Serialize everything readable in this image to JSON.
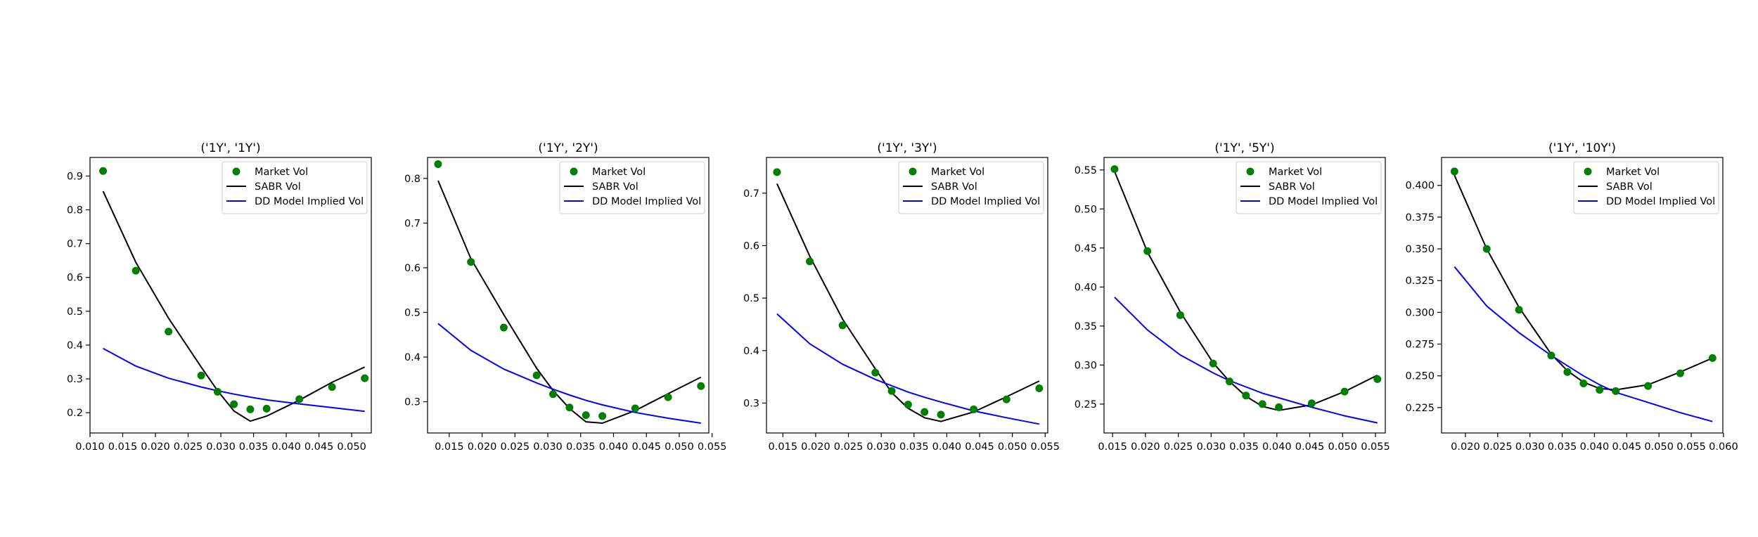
{
  "chart_data": [
    {
      "type": "line",
      "title": "('1Y', '1Y')",
      "xlim": [
        0.01,
        0.053
      ],
      "ylim": [
        0.14,
        0.955
      ],
      "xticks": [
        0.01,
        0.015,
        0.02,
        0.025,
        0.03,
        0.035,
        0.04,
        0.045,
        0.05
      ],
      "xtick_labels": [
        "0.010",
        "0.015",
        "0.020",
        "0.025",
        "0.030",
        "0.035",
        "0.040",
        "0.045",
        "0.050"
      ],
      "yticks": [
        0.2,
        0.3,
        0.4,
        0.5,
        0.6,
        0.7,
        0.8,
        0.9
      ],
      "ytick_labels": [
        "0.2",
        "0.3",
        "0.4",
        "0.5",
        "0.6",
        "0.7",
        "0.8",
        "0.9"
      ],
      "legend_position": "top-right",
      "series": [
        {
          "name": "Market Vol",
          "kind": "scatter",
          "color": "#008000",
          "x": [
            0.012,
            0.017,
            0.022,
            0.027,
            0.0295,
            0.032,
            0.0345,
            0.037,
            0.042,
            0.047,
            0.052
          ],
          "y": [
            0.915,
            0.62,
            0.44,
            0.31,
            0.262,
            0.225,
            0.21,
            0.212,
            0.24,
            0.276,
            0.302
          ]
        },
        {
          "name": "SABR Vol",
          "kind": "line",
          "color": "#000000",
          "x": [
            0.012,
            0.017,
            0.022,
            0.027,
            0.0295,
            0.032,
            0.0345,
            0.037,
            0.042,
            0.047,
            0.052
          ],
          "y": [
            0.855,
            0.645,
            0.48,
            0.335,
            0.265,
            0.205,
            0.175,
            0.19,
            0.237,
            0.29,
            0.335
          ]
        },
        {
          "name": "DD Model Implied Vol",
          "kind": "line",
          "color": "#0000ff",
          "x": [
            0.012,
            0.017,
            0.022,
            0.027,
            0.0295,
            0.032,
            0.0345,
            0.037,
            0.042,
            0.047,
            0.052
          ],
          "y": [
            0.39,
            0.338,
            0.302,
            0.276,
            0.265,
            0.255,
            0.246,
            0.238,
            0.226,
            0.215,
            0.204
          ]
        }
      ]
    },
    {
      "type": "line",
      "title": "('1Y', '2Y')",
      "xlim": [
        0.0117,
        0.0545
      ],
      "ylim": [
        0.23,
        0.847
      ],
      "xticks": [
        0.015,
        0.02,
        0.025,
        0.03,
        0.035,
        0.04,
        0.045,
        0.05,
        0.055
      ],
      "xtick_labels": [
        "0.015",
        "0.020",
        "0.025",
        "0.030",
        "0.035",
        "0.040",
        "0.045",
        "0.050",
        "0.055"
      ],
      "yticks": [
        0.3,
        0.4,
        0.5,
        0.6,
        0.7,
        0.8
      ],
      "ytick_labels": [
        "0.3",
        "0.4",
        "0.5",
        "0.6",
        "0.7",
        "0.8"
      ],
      "legend_position": "top-right",
      "series": [
        {
          "name": "Market Vol",
          "kind": "scatter",
          "color": "#008000",
          "x": [
            0.0133,
            0.0183,
            0.0233,
            0.0283,
            0.0308,
            0.0333,
            0.0358,
            0.0383,
            0.0433,
            0.0483,
            0.0533
          ],
          "y": [
            0.832,
            0.613,
            0.466,
            0.359,
            0.317,
            0.287,
            0.27,
            0.268,
            0.285,
            0.31,
            0.335
          ]
        },
        {
          "name": "SABR Vol",
          "kind": "line",
          "color": "#000000",
          "x": [
            0.0133,
            0.0183,
            0.0233,
            0.0283,
            0.0308,
            0.0333,
            0.0358,
            0.0383,
            0.0433,
            0.0483,
            0.0533
          ],
          "y": [
            0.795,
            0.62,
            0.495,
            0.375,
            0.325,
            0.285,
            0.255,
            0.252,
            0.28,
            0.318,
            0.355
          ]
        },
        {
          "name": "DD Model Implied Vol",
          "kind": "line",
          "color": "#0000ff",
          "x": [
            0.0133,
            0.0183,
            0.0233,
            0.0283,
            0.0308,
            0.0333,
            0.0358,
            0.0383,
            0.0433,
            0.0483,
            0.0533
          ],
          "y": [
            0.475,
            0.415,
            0.373,
            0.342,
            0.328,
            0.315,
            0.303,
            0.293,
            0.276,
            0.263,
            0.252
          ]
        }
      ]
    },
    {
      "type": "line",
      "title": "('1Y', '3Y')",
      "xlim": [
        0.0125,
        0.0554
      ],
      "ylim": [
        0.243,
        0.768
      ],
      "xticks": [
        0.015,
        0.02,
        0.025,
        0.03,
        0.035,
        0.04,
        0.045,
        0.05,
        0.055
      ],
      "xtick_labels": [
        "0.015",
        "0.020",
        "0.025",
        "0.030",
        "0.035",
        "0.040",
        "0.045",
        "0.050",
        "0.055"
      ],
      "yticks": [
        0.3,
        0.4,
        0.5,
        0.6,
        0.7
      ],
      "ytick_labels": [
        "0.3",
        "0.4",
        "0.5",
        "0.6",
        "0.7"
      ],
      "legend_position": "top-right",
      "series": [
        {
          "name": "Market Vol",
          "kind": "scatter",
          "color": "#008000",
          "x": [
            0.0141,
            0.0191,
            0.0241,
            0.0291,
            0.0316,
            0.0341,
            0.0366,
            0.0391,
            0.0441,
            0.0491,
            0.0541
          ],
          "y": [
            0.74,
            0.57,
            0.448,
            0.358,
            0.323,
            0.297,
            0.283,
            0.278,
            0.288,
            0.307,
            0.328
          ]
        },
        {
          "name": "SABR Vol",
          "kind": "line",
          "color": "#000000",
          "x": [
            0.0141,
            0.0191,
            0.0241,
            0.0291,
            0.0316,
            0.0341,
            0.0366,
            0.0391,
            0.0441,
            0.0491,
            0.0541
          ],
          "y": [
            0.718,
            0.58,
            0.46,
            0.365,
            0.32,
            0.29,
            0.272,
            0.265,
            0.283,
            0.312,
            0.342
          ]
        },
        {
          "name": "DD Model Implied Vol",
          "kind": "line",
          "color": "#0000ff",
          "x": [
            0.0141,
            0.0191,
            0.0241,
            0.0291,
            0.0316,
            0.0341,
            0.0366,
            0.0391,
            0.0441,
            0.0491,
            0.0541
          ],
          "y": [
            0.47,
            0.413,
            0.374,
            0.345,
            0.333,
            0.321,
            0.311,
            0.302,
            0.285,
            0.272,
            0.26
          ]
        }
      ]
    },
    {
      "type": "line",
      "title": "('1Y', '5Y')",
      "xlim": [
        0.0137,
        0.0565
      ],
      "ylim": [
        0.213,
        0.566
      ],
      "xticks": [
        0.015,
        0.02,
        0.025,
        0.03,
        0.035,
        0.04,
        0.045,
        0.05,
        0.055
      ],
      "xtick_labels": [
        "0.015",
        "0.020",
        "0.025",
        "0.030",
        "0.035",
        "0.040",
        "0.045",
        "0.050",
        "0.055"
      ],
      "yticks": [
        0.25,
        0.3,
        0.35,
        0.4,
        0.45,
        0.5,
        0.55
      ],
      "ytick_labels": [
        "0.25",
        "0.30",
        "0.35",
        "0.40",
        "0.45",
        "0.50",
        "0.55"
      ],
      "legend_position": "top-right",
      "series": [
        {
          "name": "Market Vol",
          "kind": "scatter",
          "color": "#008000",
          "x": [
            0.0153,
            0.0203,
            0.0253,
            0.0303,
            0.0328,
            0.0353,
            0.0378,
            0.0403,
            0.0453,
            0.0503,
            0.0553
          ],
          "y": [
            0.551,
            0.446,
            0.364,
            0.302,
            0.279,
            0.261,
            0.25,
            0.246,
            0.251,
            0.266,
            0.282
          ]
        },
        {
          "name": "SABR Vol",
          "kind": "line",
          "color": "#000000",
          "x": [
            0.0153,
            0.0203,
            0.0253,
            0.0303,
            0.0328,
            0.0353,
            0.0378,
            0.0403,
            0.0453,
            0.0503,
            0.0553
          ],
          "y": [
            0.548,
            0.445,
            0.368,
            0.303,
            0.279,
            0.26,
            0.247,
            0.242,
            0.249,
            0.266,
            0.287
          ]
        },
        {
          "name": "DD Model Implied Vol",
          "kind": "line",
          "color": "#0000ff",
          "x": [
            0.0153,
            0.0203,
            0.0253,
            0.0303,
            0.0328,
            0.0353,
            0.0378,
            0.0403,
            0.0453,
            0.0503,
            0.0553
          ],
          "y": [
            0.387,
            0.345,
            0.313,
            0.29,
            0.28,
            0.272,
            0.264,
            0.258,
            0.246,
            0.235,
            0.226
          ]
        }
      ]
    },
    {
      "type": "line",
      "title": "('1Y', '10Y')",
      "xlim": [
        0.0163,
        0.0599
      ],
      "ylim": [
        0.205,
        0.422
      ],
      "xticks": [
        0.02,
        0.025,
        0.03,
        0.035,
        0.04,
        0.045,
        0.05,
        0.055,
        0.06
      ],
      "xtick_labels": [
        "0.020",
        "0.025",
        "0.030",
        "0.035",
        "0.040",
        "0.045",
        "0.050",
        "0.055",
        "0.060"
      ],
      "yticks": [
        0.225,
        0.25,
        0.275,
        0.3,
        0.325,
        0.35,
        0.375,
        0.4
      ],
      "ytick_labels": [
        "0.225",
        "0.250",
        "0.275",
        "0.300",
        "0.325",
        "0.350",
        "0.375",
        "0.400"
      ],
      "legend_position": "top-right",
      "series": [
        {
          "name": "Market Vol",
          "kind": "scatter",
          "color": "#008000",
          "x": [
            0.0183,
            0.0233,
            0.0283,
            0.0333,
            0.0358,
            0.0383,
            0.0408,
            0.0433,
            0.0483,
            0.0533,
            0.0583
          ],
          "y": [
            0.411,
            0.35,
            0.302,
            0.266,
            0.253,
            0.244,
            0.239,
            0.238,
            0.242,
            0.252,
            0.264
          ]
        },
        {
          "name": "SABR Vol",
          "kind": "line",
          "color": "#000000",
          "x": [
            0.0183,
            0.0233,
            0.0283,
            0.0333,
            0.0358,
            0.0383,
            0.0408,
            0.0433,
            0.0483,
            0.0533,
            0.0583
          ],
          "y": [
            0.408,
            0.35,
            0.304,
            0.267,
            0.254,
            0.245,
            0.24,
            0.239,
            0.243,
            0.253,
            0.264
          ]
        },
        {
          "name": "DD Model Implied Vol",
          "kind": "line",
          "color": "#0000ff",
          "x": [
            0.0183,
            0.0233,
            0.0283,
            0.0333,
            0.0358,
            0.0383,
            0.0408,
            0.0433,
            0.0483,
            0.0533,
            0.0583
          ],
          "y": [
            0.336,
            0.305,
            0.284,
            0.266,
            0.258,
            0.25,
            0.243,
            0.237,
            0.229,
            0.221,
            0.214
          ]
        }
      ]
    }
  ]
}
